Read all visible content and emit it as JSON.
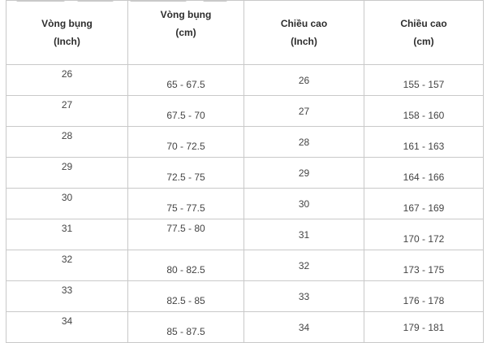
{
  "table": {
    "headers": [
      {
        "line1": "Vòng bụng",
        "line2": "(Inch)"
      },
      {
        "line1": "Vòng bụng",
        "line2": "(cm)"
      },
      {
        "line1": "Chiều cao",
        "line2": "(Inch)"
      },
      {
        "line1": "Chiều cao",
        "line2": "(cm)"
      }
    ],
    "rows": [
      [
        "26",
        "65 - 67.5",
        "26",
        "155 - 157"
      ],
      [
        "27",
        "67.5 - 70",
        "27",
        "158 - 160"
      ],
      [
        "28",
        "70 - 72.5",
        "28",
        "161 - 163"
      ],
      [
        "29",
        "72.5 - 75",
        "29",
        "164 - 166"
      ],
      [
        "30",
        "75 - 77.5",
        "30",
        "167 - 169"
      ],
      [
        "31",
        "77.5 - 80",
        "31",
        "170 - 172"
      ],
      [
        "32",
        "80 - 82.5",
        "32",
        "173 - 175"
      ],
      [
        "33",
        "82.5 - 85",
        "33",
        "176 - 178"
      ],
      [
        "34",
        "85 - 87.5",
        "34",
        "179 - 181"
      ]
    ]
  }
}
